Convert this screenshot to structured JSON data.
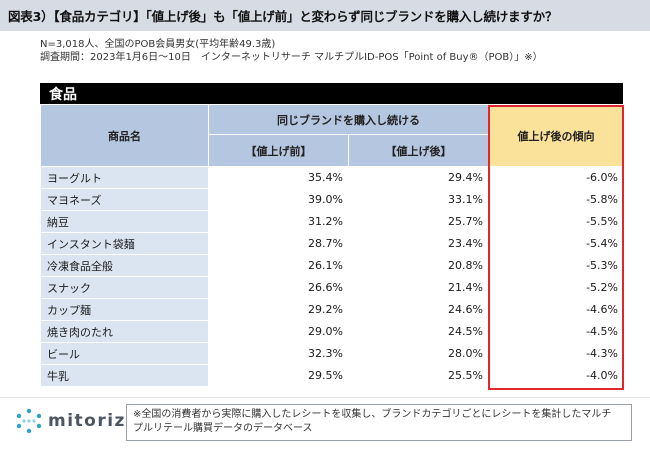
{
  "title": "図表3）【食品カテゴリ】「値上げ後」も「値上げ前」と変わらず同じブランドを購入し続けますか？",
  "meta": {
    "line1": "N=3,018人、全国のPOB会員男女(平均年齢49.3歳)",
    "line2": "調査期間：2023年1月6日～10日　インターネットリサーチ マルチプルID-POS「Point of Buy®（POB）」※）"
  },
  "section": "食品",
  "table": {
    "header_product": "商品名",
    "header_group": "同じブランドを購入し続ける",
    "header_before": "【値上げ前】",
    "header_after": "【値上げ後】",
    "header_trend": "値上げ後の傾向",
    "rows": [
      {
        "name": "ヨーグルト",
        "before": "35.4%",
        "after": "29.4%",
        "trend": "-6.0%"
      },
      {
        "name": "マヨネーズ",
        "before": "39.0%",
        "after": "33.1%",
        "trend": "-5.8%"
      },
      {
        "name": "納豆",
        "before": "31.2%",
        "after": "25.7%",
        "trend": "-5.5%"
      },
      {
        "name": "インスタント袋麺",
        "before": "28.7%",
        "after": "23.4%",
        "trend": "-5.4%"
      },
      {
        "name": "冷凍食品全般",
        "before": "26.1%",
        "after": "20.8%",
        "trend": "-5.3%"
      },
      {
        "name": "スナック",
        "before": "26.6%",
        "after": "21.4%",
        "trend": "-5.2%"
      },
      {
        "name": "カップ麺",
        "before": "29.2%",
        "after": "24.6%",
        "trend": "-4.6%"
      },
      {
        "name": "焼き肉のたれ",
        "before": "29.0%",
        "after": "24.5%",
        "trend": "-4.5%"
      },
      {
        "name": "ビール",
        "before": "32.3%",
        "after": "28.0%",
        "trend": "-4.3%"
      },
      {
        "name": "牛乳",
        "before": "29.5%",
        "after": "25.5%",
        "trend": "-4.0%"
      }
    ]
  },
  "logo": {
    "text": "mitoriz",
    "icon": "mitoriz-logo-icon"
  },
  "footnote": {
    "line1": "※全国の消費者から実際に購入したレシートを収集し、ブランドカテゴリごとにレシートを集計したマルチ",
    "line2": "プルリテール購買データのデータベース"
  },
  "colors": {
    "header_bg": "#d6dbe4",
    "table_header": "#b5c6e1",
    "name_cell": "#dbe5f1",
    "trend_header": "#fbe29a",
    "highlight": "#e0262e"
  }
}
